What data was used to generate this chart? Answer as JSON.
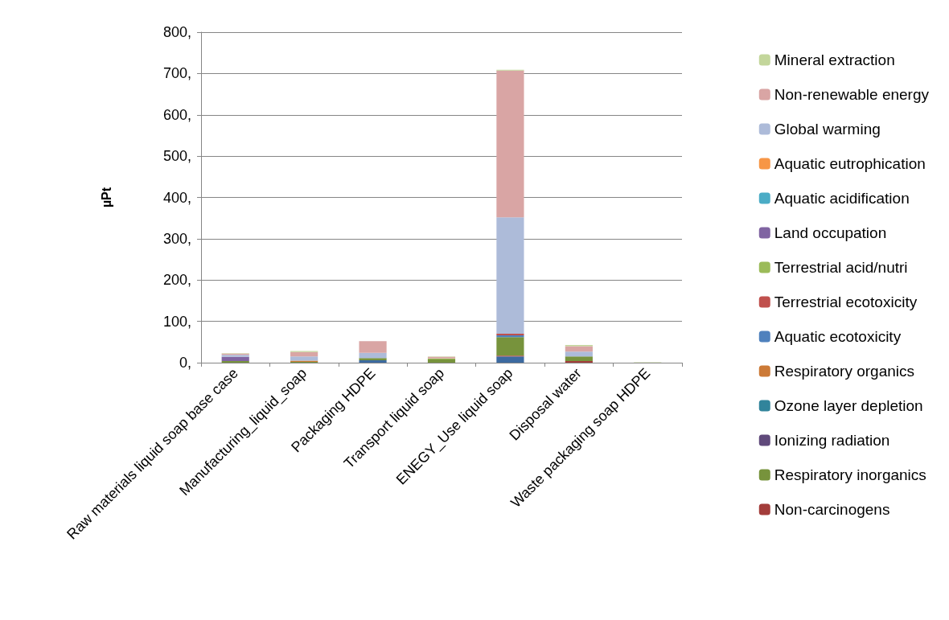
{
  "chart_data": {
    "type": "bar",
    "stacked": true,
    "ylabel": "µPt",
    "categories": [
      "Raw materials liquid soap base case",
      "Manufacturing_liquid_soap",
      "Packaging HDPE",
      "Transport liquid soap",
      "ENEGY_Use liquid soap",
      "Disposal water",
      "Waste packaging soap HDPE"
    ],
    "series": [
      {
        "color": "#3c6aa0",
        "values": [
          0,
          0,
          6,
          0,
          15,
          0,
          0
        ]
      },
      {
        "color": "#b84040",
        "values": [
          0,
          0,
          0,
          0,
          2,
          0,
          0
        ]
      },
      {
        "name": "Non-carcinogens",
        "color": "#a33d3b",
        "values": [
          0,
          0,
          0,
          0,
          0,
          4,
          0
        ]
      },
      {
        "name": "Respiratory inorganics",
        "color": "#77933c",
        "values": [
          4,
          2,
          5,
          8,
          45,
          11,
          0
        ]
      },
      {
        "name": "Ionizing radiation",
        "color": "#604a7b",
        "values": [
          0,
          0,
          0,
          0,
          0,
          0,
          0
        ]
      },
      {
        "name": "Ozone layer depletion",
        "color": "#31849b",
        "values": [
          0,
          0,
          0,
          0,
          0,
          0,
          0
        ]
      },
      {
        "name": "Respiratory organics",
        "color": "#cc7a37",
        "values": [
          0,
          3,
          0,
          0,
          null,
          0,
          0
        ]
      },
      {
        "name": "Aquatic ecotoxicity",
        "color": "#4f81bd",
        "values": [
          0,
          0,
          0,
          0,
          4,
          0,
          0
        ]
      },
      {
        "name": "Terrestrial ecotoxicity",
        "color": "#c0504d",
        "values": [
          0,
          0,
          0,
          0,
          4,
          0,
          0
        ]
      },
      {
        "name": "Terrestrial acid/nutri",
        "color": "#9bbb59",
        "values": [
          0,
          0,
          0,
          2,
          0,
          0,
          0
        ]
      },
      {
        "name": "Land occupation",
        "color": "#8064a2",
        "values": [
          10,
          0,
          0,
          0,
          0,
          0,
          0
        ]
      },
      {
        "name": "Aquatic acidification",
        "color": "#4bacc6",
        "values": [
          0,
          0,
          0,
          0,
          0,
          0,
          0
        ]
      },
      {
        "name": "Aquatic eutrophication",
        "color": "#f79646",
        "values": [
          0,
          0,
          0,
          0,
          0,
          0,
          0
        ]
      },
      {
        "name": "Global warming",
        "color": "#adbbd9",
        "values": [
          5,
          10,
          13,
          null,
          282,
          12,
          0
        ]
      },
      {
        "name": "Non-renewable energy",
        "color": "#d9a5a4",
        "values": [
          3,
          11,
          28,
          4,
          355,
          13,
          0
        ]
      },
      {
        "name": "Mineral extraction",
        "color": "#c3d69b",
        "values": [
          1,
          2,
          null,
          1,
          2,
          3,
          1
        ]
      }
    ],
    "ylim": [
      0,
      800
    ],
    "yticks": [
      {
        "value": 0,
        "label": "0,"
      },
      {
        "value": 100,
        "label": "100,"
      },
      {
        "value": 200,
        "label": "200,"
      },
      {
        "value": 300,
        "label": "300,"
      },
      {
        "value": 400,
        "label": "400,"
      },
      {
        "value": 500,
        "label": "500,"
      },
      {
        "value": 600,
        "label": "600,"
      },
      {
        "value": 700,
        "label": "700,"
      },
      {
        "value": 800,
        "label": "800,"
      }
    ],
    "grid": "y",
    "legend": "right"
  }
}
